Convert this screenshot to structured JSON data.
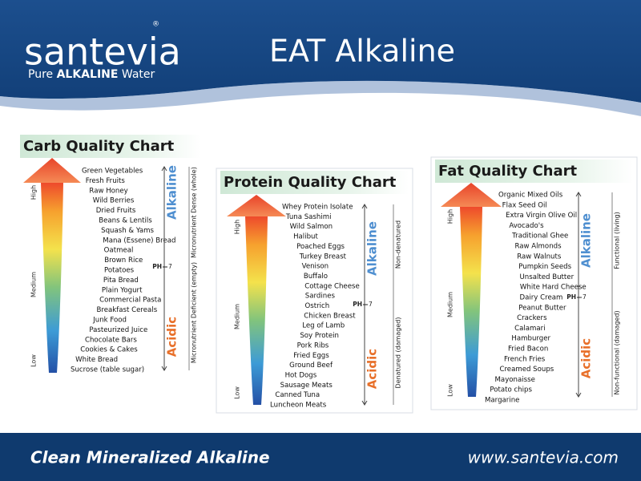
{
  "header": {
    "logo": "santevia",
    "registered": "®",
    "tagline": [
      "Pure",
      "ALKALINE",
      "Water"
    ],
    "title": "EAT Alkaline"
  },
  "panels": [
    {
      "title": "Carb Quality Chart",
      "items": [
        "Green Vegetables",
        "Fresh Fruits",
        "Raw Honey",
        "Wild Berries",
        "Dried Fruits",
        "Beans & Lentils",
        "Squash & Yams",
        "Mana (Essene) Bread",
        "Oatmeal",
        "Brown Rice",
        "Potatoes",
        "Pita Bread",
        "Plain Yogurt",
        "Commercial Pasta",
        "Breakfast Cereals",
        "Junk Food",
        "Pasteurized Juice",
        "Chocolate Bars",
        "Cookies & Cakes",
        "White Bread",
        "Sucrose (table sugar)"
      ],
      "levels": [
        "High",
        "Medium",
        "Low"
      ],
      "alkaline": "Alkaline",
      "acidic": "Acidic",
      "ph": "PH",
      "ph_value": "7",
      "top_label": "Micronutrient Dense (whole)",
      "bottom_label": "Micronutrient Deficient (empty)"
    },
    {
      "title": "Protein Quality Chart",
      "items": [
        "Whey Protein Isolate",
        "Tuna Sashimi",
        "Wild Salmon",
        "Halibut",
        "Poached Eggs",
        "Turkey Breast",
        "Venison",
        "Buffalo",
        "Cottage Cheese",
        "Sardines",
        "Ostrich",
        "Chicken Breast",
        "Leg of Lamb",
        "Soy Protein",
        "Pork Ribs",
        "Fried Eggs",
        "Ground Beef",
        "Hot Dogs",
        "Sausage Meats",
        "Canned Tuna",
        "Luncheon Meats"
      ],
      "levels": [
        "High",
        "Medium",
        "Low"
      ],
      "alkaline": "Alkaline",
      "acidic": "Acidic",
      "ph": "PH",
      "ph_value": "7",
      "top_label": "Non-denatured",
      "bottom_label": "Denatured (damaged)"
    },
    {
      "title": "Fat Quality Chart",
      "items": [
        "Organic Mixed Oils",
        "Flax Seed Oil",
        "Extra Virgin Olive Oil",
        "Avocado's",
        "Traditional Ghee",
        "Raw Almonds",
        "Raw Walnuts",
        "Pumpkin Seeds",
        "Unsalted Butter",
        "White Hard Cheese",
        "Dairy Cream",
        "Peanut Butter",
        "Crackers",
        "Calamari",
        "Hamburger",
        "Fried Bacon",
        "French Fries",
        "Creamed Soups",
        "Mayonaisse",
        "Potato chips",
        "Margarine"
      ],
      "levels": [
        "High",
        "Medium",
        "Low"
      ],
      "alkaline": "Alkaline",
      "acidic": "Acidic",
      "ph": "PH",
      "ph_value": "7",
      "top_label": "Functional (living)",
      "bottom_label": "Non-functional (damaged)"
    }
  ],
  "footer": {
    "slogan": "Clean Mineralized Alkaline",
    "url": "www.santevia.com"
  }
}
